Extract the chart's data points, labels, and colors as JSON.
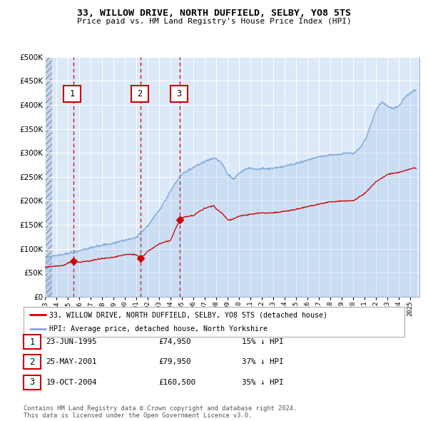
{
  "title": "33, WILLOW DRIVE, NORTH DUFFIELD, SELBY, YO8 5TS",
  "subtitle": "Price paid vs. HM Land Registry's House Price Index (HPI)",
  "legend_line1": "33, WILLOW DRIVE, NORTH DUFFIELD, SELBY, YO8 5TS (detached house)",
  "legend_line2": "HPI: Average price, detached house, North Yorkshire",
  "footer1": "Contains HM Land Registry data © Crown copyright and database right 2024.",
  "footer2": "This data is licensed under the Open Government Licence v3.0.",
  "sale_labels": [
    "1",
    "2",
    "3"
  ],
  "sale_dates_label": [
    "23-JUN-1995",
    "25-MAY-2001",
    "19-OCT-2004"
  ],
  "sale_prices_label": [
    "£74,950",
    "£79,950",
    "£160,500"
  ],
  "sale_pct_label": [
    "15% ↓ HPI",
    "37% ↓ HPI",
    "35% ↓ HPI"
  ],
  "sale_years": [
    1995.47,
    2001.39,
    2004.8
  ],
  "sale_prices": [
    74950,
    79950,
    160500
  ],
  "hpi_color": "#7aaadd",
  "price_color": "#cc0000",
  "dashed_line_color": "#cc0000",
  "plot_bg_color": "#dce9f8",
  "grid_color": "#ffffff",
  "ylim": [
    0,
    500000
  ],
  "yticks": [
    0,
    50000,
    100000,
    150000,
    200000,
    250000,
    300000,
    350000,
    400000,
    450000,
    500000
  ],
  "xlim_start": 1993.0,
  "xlim_end": 2025.8,
  "hpi_key_years": [
    1993.0,
    1994.0,
    1995.0,
    1996.0,
    1997.0,
    1998.0,
    1999.0,
    2000.0,
    2001.0,
    2002.0,
    2003.0,
    2004.0,
    2004.5,
    2005.0,
    2006.0,
    2007.0,
    2007.8,
    2008.5,
    2009.0,
    2009.5,
    2010.0,
    2010.5,
    2011.0,
    2011.5,
    2012.0,
    2013.0,
    2014.0,
    2015.0,
    2016.0,
    2017.0,
    2018.0,
    2019.0,
    2019.5,
    2020.0,
    2020.5,
    2021.0,
    2021.5,
    2022.0,
    2022.5,
    2023.0,
    2023.5,
    2024.0,
    2024.5,
    2025.3
  ],
  "hpi_key_vals": [
    83000,
    86000,
    90000,
    96000,
    102000,
    108000,
    112000,
    118000,
    124000,
    148000,
    180000,
    220000,
    240000,
    255000,
    270000,
    282000,
    290000,
    278000,
    255000,
    245000,
    258000,
    265000,
    268000,
    265000,
    267000,
    268000,
    272000,
    278000,
    285000,
    292000,
    295000,
    298000,
    300000,
    298000,
    308000,
    325000,
    355000,
    390000,
    405000,
    398000,
    392000,
    398000,
    415000,
    430000
  ],
  "price_key_years": [
    1993.0,
    1994.5,
    1995.47,
    1996.0,
    1997.0,
    1998.0,
    1999.0,
    2000.0,
    2001.0,
    2001.39,
    2002.0,
    2003.0,
    2004.0,
    2004.8,
    2005.0,
    2006.0,
    2007.0,
    2007.8,
    2008.0,
    2008.5,
    2009.0,
    2009.5,
    2010.0,
    2011.0,
    2012.0,
    2013.0,
    2014.0,
    2015.0,
    2016.0,
    2017.0,
    2018.0,
    2019.0,
    2020.0,
    2021.0,
    2022.0,
    2023.0,
    2024.0,
    2025.3
  ],
  "price_key_vals": [
    62000,
    65000,
    74950,
    72000,
    75000,
    80000,
    82000,
    88000,
    88000,
    79950,
    95000,
    110000,
    118000,
    160500,
    165000,
    170000,
    185000,
    190000,
    183000,
    175000,
    160000,
    162000,
    168000,
    172000,
    175000,
    175000,
    178000,
    182000,
    188000,
    193000,
    198000,
    200000,
    200000,
    215000,
    240000,
    255000,
    260000,
    268000
  ]
}
